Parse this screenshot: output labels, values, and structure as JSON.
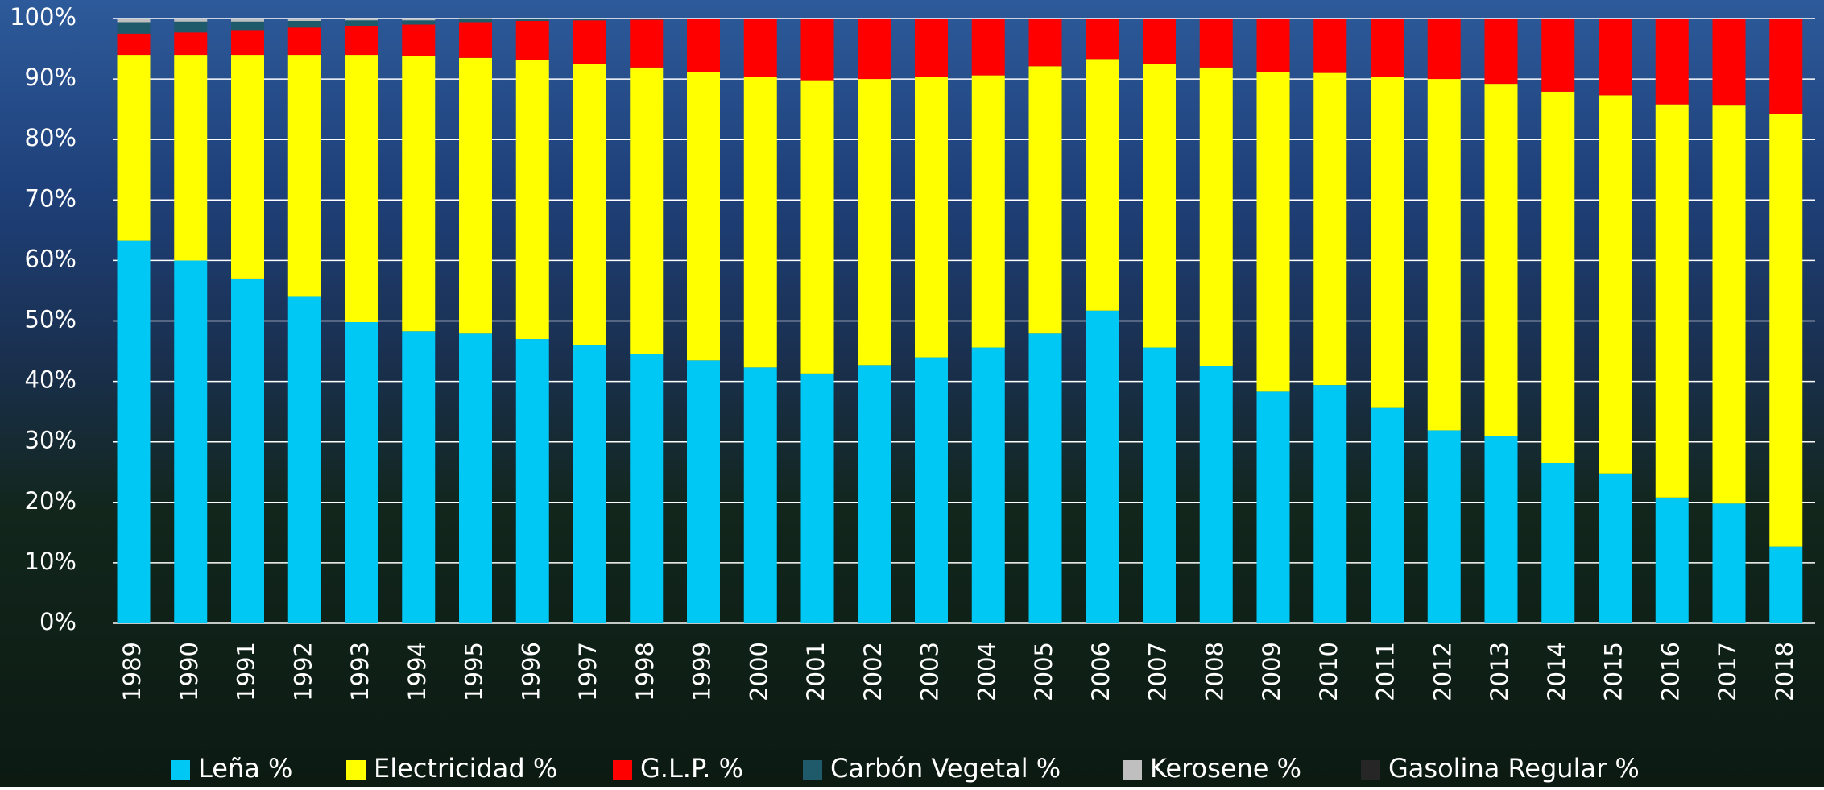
{
  "chart_data": {
    "type": "stacked_bar",
    "categories": [
      "1989",
      "1990",
      "1991",
      "1992",
      "1993",
      "1994",
      "1995",
      "1996",
      "1997",
      "1998",
      "1999",
      "2000",
      "2001",
      "2002",
      "2003",
      "2004",
      "2005",
      "2006",
      "2007",
      "2008",
      "2009",
      "2010",
      "2011",
      "2012",
      "2013",
      "2014",
      "2015",
      "2016",
      "2017",
      "2018"
    ],
    "series": [
      {
        "name": "Leña %",
        "color": "#00c8f5",
        "values": [
          63.3,
          60,
          57,
          54,
          49.8,
          48.3,
          47.9,
          47,
          46,
          44.6,
          43.5,
          42.3,
          41.3,
          42.7,
          44,
          45.6,
          47.9,
          51.7,
          45.6,
          42.5,
          38.3,
          39.4,
          35.6,
          31.9,
          31,
          26.5,
          24.8,
          20.8,
          19.8,
          12.7
        ]
      },
      {
        "name": "Electricidad %",
        "color": "#ffff00",
        "values": [
          30.7,
          34,
          37,
          40,
          44.2,
          45.5,
          45.6,
          46.1,
          46.5,
          47.3,
          47.7,
          48.1,
          48.5,
          47.3,
          46.4,
          45,
          44.2,
          41.6,
          46.9,
          49.4,
          52.9,
          51.6,
          54.8,
          58.1,
          58.2,
          61.4,
          62.5,
          65,
          65.8,
          71.5
        ]
      },
      {
        "name": "G.L.P. %",
        "color": "#ff0000",
        "values": [
          3.5,
          3.7,
          4.1,
          4.5,
          4.8,
          5.2,
          5.9,
          6.5,
          7.2,
          7.9,
          8.7,
          9.5,
          10.1,
          9.9,
          9.5,
          9.3,
          7.8,
          6.6,
          7.4,
          8,
          8.7,
          8.9,
          9.5,
          9.9,
          10.7,
          12,
          12.6,
          14.1,
          14.3,
          15.7
        ]
      },
      {
        "name": "Carbón Vegetal %",
        "color": "#1f5a6a",
        "values": [
          1.9,
          1.8,
          1.4,
          1.1,
          0.9,
          0.7,
          0.5,
          0.3,
          0.2,
          0.1,
          0,
          0,
          0,
          0,
          0,
          0,
          0,
          0,
          0,
          0,
          0,
          0,
          0,
          0,
          0,
          0,
          0,
          0,
          0,
          0
        ]
      },
      {
        "name": "Kerosene %",
        "color": "#bfbfbf",
        "values": [
          0.6,
          0.5,
          0.5,
          0.4,
          0.3,
          0.3,
          0.2,
          0.1,
          0.1,
          0.1,
          0,
          0,
          0,
          0,
          0,
          0,
          0,
          0,
          0,
          0,
          0,
          0,
          0,
          0,
          0,
          0,
          0,
          0,
          0,
          0
        ]
      },
      {
        "name": "Gasolina Regular %",
        "color": "#262626",
        "values": [
          0,
          0,
          0,
          0,
          0,
          0,
          0,
          0,
          0,
          0,
          0,
          0,
          0,
          0,
          0,
          0,
          0,
          0,
          0,
          0,
          0,
          0,
          0,
          0,
          0,
          0,
          0,
          0,
          0,
          0
        ]
      }
    ],
    "ylim": [
      0,
      100
    ],
    "yticks": [
      {
        "value": 0,
        "label": "0%"
      },
      {
        "value": 10,
        "label": "10%"
      },
      {
        "value": 20,
        "label": "20%"
      },
      {
        "value": 30,
        "label": "30%"
      },
      {
        "value": 40,
        "label": "40%"
      },
      {
        "value": 50,
        "label": "50%"
      },
      {
        "value": 60,
        "label": "60%"
      },
      {
        "value": 70,
        "label": "70%"
      },
      {
        "value": 80,
        "label": "80%"
      },
      {
        "value": 90,
        "label": "90%"
      },
      {
        "value": 100,
        "label": "100%"
      }
    ],
    "grid": true,
    "legend": "bottom"
  }
}
